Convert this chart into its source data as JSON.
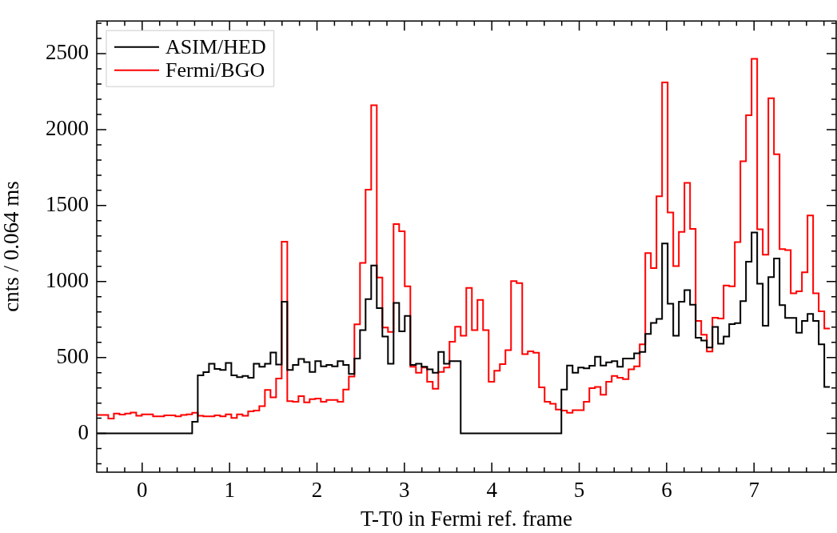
{
  "chart_data": {
    "type": "step",
    "xlabel": "T-T0 in Fermi ref. frame",
    "ylabel": "cnts / 0.064 ms",
    "x": [
      -0.516,
      -0.452,
      -0.388,
      -0.324,
      -0.26,
      -0.196,
      -0.132,
      -0.068,
      -0.004,
      0.06,
      0.124,
      0.188,
      0.252,
      0.316,
      0.38,
      0.444,
      0.508,
      0.572,
      0.636,
      0.7,
      0.764,
      0.828,
      0.892,
      0.956,
      1.02,
      1.084,
      1.148,
      1.212,
      1.276,
      1.34,
      1.404,
      1.468,
      1.532,
      1.596,
      1.66,
      1.724,
      1.788,
      1.852,
      1.916,
      1.98,
      2.044,
      2.108,
      2.172,
      2.236,
      2.3,
      2.364,
      2.428,
      2.492,
      2.556,
      2.62,
      2.684,
      2.748,
      2.812,
      2.876,
      2.94,
      3.004,
      3.068,
      3.132,
      3.196,
      3.26,
      3.324,
      3.388,
      3.452,
      3.516,
      3.58,
      3.644,
      3.708,
      3.772,
      3.836,
      3.9,
      3.964,
      4.028,
      4.092,
      4.156,
      4.22,
      4.284,
      4.348,
      4.412,
      4.476,
      4.54,
      4.604,
      4.668,
      4.732,
      4.796,
      4.86,
      4.924,
      4.988,
      5.052,
      5.116,
      5.18,
      5.244,
      5.308,
      5.372,
      5.436,
      5.5,
      5.564,
      5.628,
      5.692,
      5.756,
      5.82,
      5.884,
      5.948,
      6.012,
      6.076,
      6.14,
      6.204,
      6.268,
      6.332,
      6.396,
      6.46,
      6.524,
      6.588,
      6.652,
      6.716,
      6.78,
      6.844,
      6.908,
      6.972,
      7.036,
      7.1,
      7.164,
      7.228,
      7.292,
      7.356,
      7.42,
      7.484,
      7.548,
      7.612,
      7.676,
      7.74,
      7.804,
      7.868
    ],
    "series": [
      {
        "name": "ASIM/HED",
        "color": "#000000",
        "values": [
          0,
          0,
          0,
          0,
          0,
          0,
          0,
          0,
          0,
          0,
          0,
          0,
          0,
          0,
          0,
          0,
          0,
          0,
          77,
          383,
          403,
          459,
          425,
          418,
          464,
          383,
          371,
          379,
          367,
          459,
          439,
          459,
          532,
          454,
          867,
          418,
          451,
          490,
          469,
          405,
          476,
          442,
          451,
          442,
          476,
          451,
          391,
          493,
          680,
          884,
          1105,
          825,
          638,
          459,
          859,
          672,
          774,
          451,
          459,
          439,
          422,
          400,
          536,
          459,
          476,
          476,
          0,
          0,
          0,
          0,
          0,
          0,
          0,
          0,
          0,
          0,
          0,
          0,
          0,
          0,
          0,
          0,
          0,
          0,
          289,
          447,
          400,
          434,
          429,
          446,
          505,
          447,
          468,
          476,
          439,
          493,
          493,
          527,
          536,
          655,
          728,
          754,
          1250,
          854,
          643,
          867,
          944,
          847,
          630,
          612,
          565,
          701,
          590,
          638,
          719,
          726,
          871,
          1131,
          1323,
          986,
          709,
          1029,
          1151,
          845,
          760,
          760,
          663,
          740,
          787,
          740,
          587,
          306
        ]
      },
      {
        "name": "Fermi/BGO",
        "color": "#ff0000",
        "values": [
          119,
          122,
          122,
          98,
          131,
          124,
          131,
          138,
          116,
          126,
          126,
          112,
          112,
          119,
          119,
          112,
          122,
          126,
          136,
          116,
          112,
          112,
          119,
          112,
          126,
          102,
          126,
          116,
          145,
          150,
          179,
          286,
          238,
          361,
          1262,
          213,
          209,
          245,
          204,
          226,
          230,
          209,
          221,
          221,
          209,
          289,
          374,
          718,
          1122,
          1604,
          2160,
          1026,
          697,
          668,
          1378,
          1330,
          969,
          439,
          400,
          434,
          340,
          294,
          405,
          434,
          604,
          702,
          643,
          958,
          680,
          879,
          680,
          340,
          413,
          456,
          549,
          1003,
          990,
          522,
          541,
          531,
          303,
          209,
          196,
          157,
          150,
          136,
          153,
          153,
          209,
          298,
          306,
          255,
          340,
          379,
          366,
          357,
          422,
          442,
          587,
          1187,
          1088,
          1561,
          2310,
          1454,
          1102,
          1327,
          1649,
          1347,
          740,
          650,
          539,
          762,
          757,
          974,
          969,
          1259,
          1791,
          2095,
          2466,
          1344,
          1177,
          2206,
          1837,
          1213,
          1207,
          923,
          935,
          1060,
          1434,
          923,
          804,
          690
        ]
      }
    ],
    "xlim": [
      -0.52,
      7.94
    ],
    "ylim": [
      -255,
      2715
    ],
    "xticks": [
      {
        "value": -0.4,
        "label": null
      },
      {
        "value": -0.2,
        "label": null
      },
      0,
      {
        "value": 0.2,
        "label": null
      },
      {
        "value": 0.4,
        "label": null
      },
      {
        "value": 0.6,
        "label": null
      },
      {
        "value": 0.8,
        "label": null
      },
      1,
      {
        "value": 1.2,
        "label": null
      },
      {
        "value": 1.4,
        "label": null
      },
      {
        "value": 1.6,
        "label": null
      },
      {
        "value": 1.8,
        "label": null
      },
      2,
      {
        "value": 2.2,
        "label": null
      },
      {
        "value": 2.4,
        "label": null
      },
      {
        "value": 2.6,
        "label": null
      },
      {
        "value": 2.8,
        "label": null
      },
      3,
      {
        "value": 3.2,
        "label": null
      },
      {
        "value": 3.4,
        "label": null
      },
      {
        "value": 3.6,
        "label": null
      },
      {
        "value": 3.8,
        "label": null
      },
      4,
      {
        "value": 4.2,
        "label": null
      },
      {
        "value": 4.4,
        "label": null
      },
      {
        "value": 4.6,
        "label": null
      },
      {
        "value": 4.8,
        "label": null
      },
      5,
      {
        "value": 5.2,
        "label": null
      },
      {
        "value": 5.4,
        "label": null
      },
      {
        "value": 5.6,
        "label": null
      },
      {
        "value": 5.8,
        "label": null
      },
      6,
      {
        "value": 6.2,
        "label": null
      },
      {
        "value": 6.4,
        "label": null
      },
      {
        "value": 6.6,
        "label": null
      },
      {
        "value": 6.8,
        "label": null
      },
      7,
      {
        "value": 7.2,
        "label": null
      },
      {
        "value": 7.4,
        "label": null
      },
      {
        "value": 7.6,
        "label": null
      },
      {
        "value": 7.8,
        "label": null
      }
    ],
    "yticks": [
      {
        "value": -200,
        "label": null
      },
      {
        "value": -100,
        "label": null
      },
      0,
      {
        "value": 100,
        "label": null
      },
      {
        "value": 200,
        "label": null
      },
      {
        "value": 300,
        "label": null
      },
      {
        "value": 400,
        "label": null
      },
      500,
      {
        "value": 600,
        "label": null
      },
      {
        "value": 700,
        "label": null
      },
      {
        "value": 800,
        "label": null
      },
      {
        "value": 900,
        "label": null
      },
      1000,
      {
        "value": 1100,
        "label": null
      },
      {
        "value": 1200,
        "label": null
      },
      {
        "value": 1300,
        "label": null
      },
      {
        "value": 1400,
        "label": null
      },
      1500,
      {
        "value": 1600,
        "label": null
      },
      {
        "value": 1700,
        "label": null
      },
      {
        "value": 1800,
        "label": null
      },
      {
        "value": 1900,
        "label": null
      },
      2000,
      {
        "value": 2100,
        "label": null
      },
      {
        "value": 2200,
        "label": null
      },
      {
        "value": 2300,
        "label": null
      },
      {
        "value": 2400,
        "label": null
      },
      2500,
      {
        "value": 2600,
        "label": null
      },
      {
        "value": 2700,
        "label": null
      }
    ],
    "legend": "top left"
  }
}
